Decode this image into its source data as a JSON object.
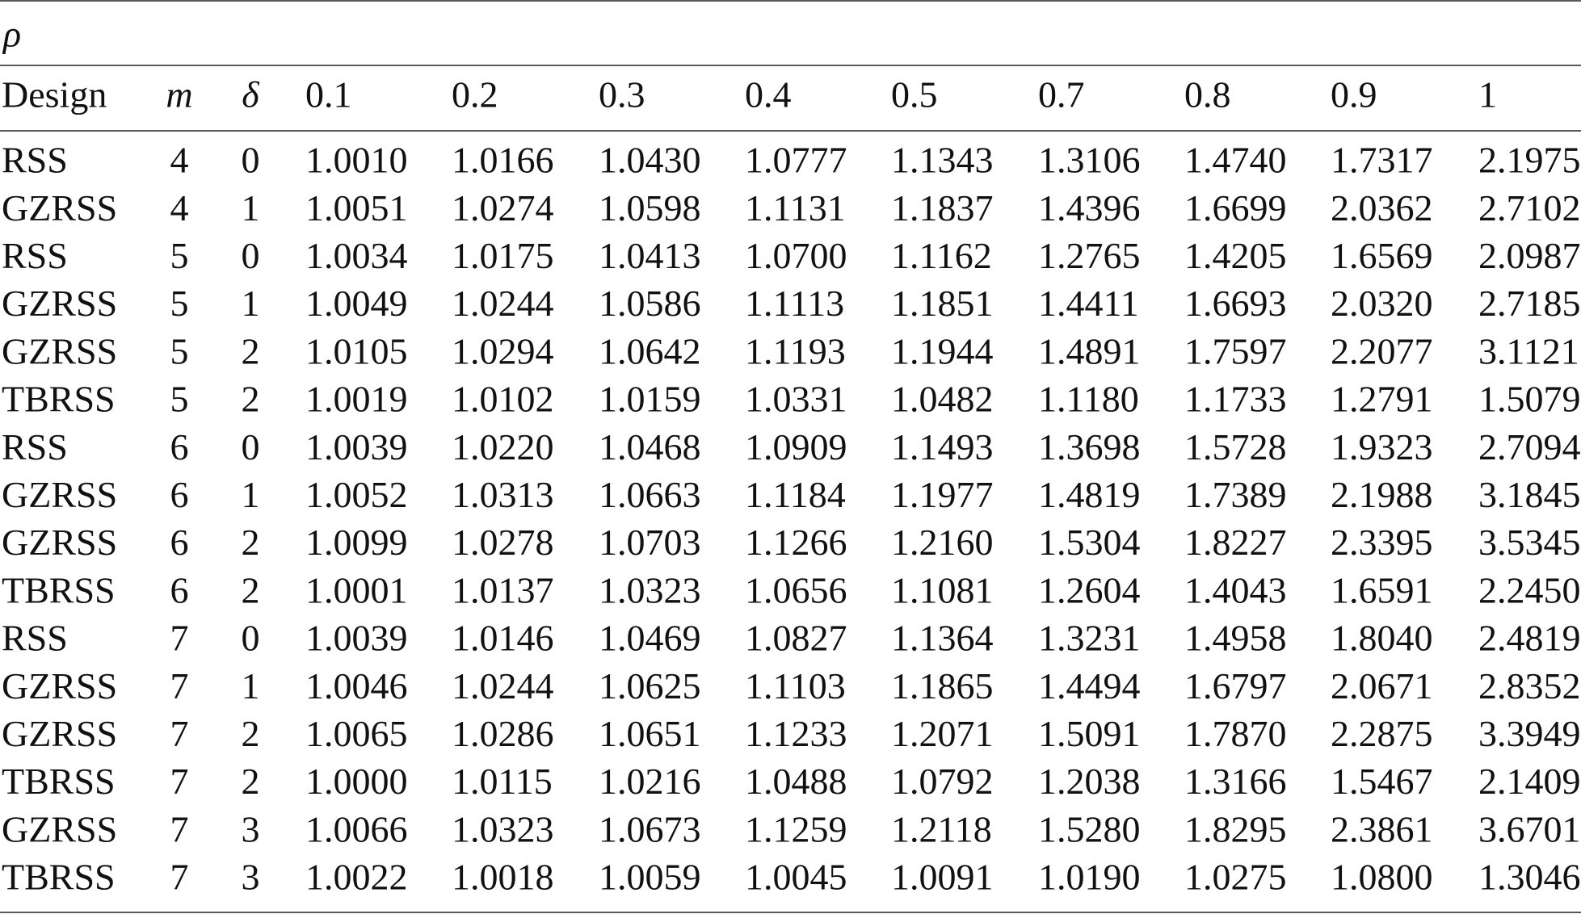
{
  "header": {
    "rho": "ρ"
  },
  "table": {
    "columns": [
      "Design",
      "m",
      "δ",
      "0.1",
      "0.2",
      "0.3",
      "0.4",
      "0.5",
      "0.7",
      "0.8",
      "0.9",
      "1"
    ],
    "rows": [
      [
        "RSS",
        "4",
        "0",
        "1.0010",
        "1.0166",
        "1.0430",
        "1.0777",
        "1.1343",
        "1.3106",
        "1.4740",
        "1.7317",
        "2.1975"
      ],
      [
        "GZRSS",
        "4",
        "1",
        "1.0051",
        "1.0274",
        "1.0598",
        "1.1131",
        "1.1837",
        "1.4396",
        "1.6699",
        "2.0362",
        "2.7102"
      ],
      [
        "RSS",
        "5",
        "0",
        "1.0034",
        "1.0175",
        "1.0413",
        "1.0700",
        "1.1162",
        "1.2765",
        "1.4205",
        "1.6569",
        "2.0987"
      ],
      [
        "GZRSS",
        "5",
        "1",
        "1.0049",
        "1.0244",
        "1.0586",
        "1.1113",
        "1.1851",
        "1.4411",
        "1.6693",
        "2.0320",
        "2.7185"
      ],
      [
        "GZRSS",
        "5",
        "2",
        "1.0105",
        "1.0294",
        "1.0642",
        "1.1193",
        "1.1944",
        "1.4891",
        "1.7597",
        "2.2077",
        "3.1121"
      ],
      [
        "TBRSS",
        "5",
        "2",
        "1.0019",
        "1.0102",
        "1.0159",
        "1.0331",
        "1.0482",
        "1.1180",
        "1.1733",
        "1.2791",
        "1.5079"
      ],
      [
        "RSS",
        "6",
        "0",
        "1.0039",
        "1.0220",
        "1.0468",
        "1.0909",
        "1.1493",
        "1.3698",
        "1.5728",
        "1.9323",
        "2.7094"
      ],
      [
        "GZRSS",
        "6",
        "1",
        "1.0052",
        "1.0313",
        "1.0663",
        "1.1184",
        "1.1977",
        "1.4819",
        "1.7389",
        "2.1988",
        "3.1845"
      ],
      [
        "GZRSS",
        "6",
        "2",
        "1.0099",
        "1.0278",
        "1.0703",
        "1.1266",
        "1.2160",
        "1.5304",
        "1.8227",
        "2.3395",
        "3.5345"
      ],
      [
        "TBRSS",
        "6",
        "2",
        "1.0001",
        "1.0137",
        "1.0323",
        "1.0656",
        "1.1081",
        "1.2604",
        "1.4043",
        "1.6591",
        "2.2450"
      ],
      [
        "RSS",
        "7",
        "0",
        "1.0039",
        "1.0146",
        "1.0469",
        "1.0827",
        "1.1364",
        "1.3231",
        "1.4958",
        "1.8040",
        "2.4819"
      ],
      [
        "GZRSS",
        "7",
        "1",
        "1.0046",
        "1.0244",
        "1.0625",
        "1.1103",
        "1.1865",
        "1.4494",
        "1.6797",
        "2.0671",
        "2.8352"
      ],
      [
        "GZRSS",
        "7",
        "2",
        "1.0065",
        "1.0286",
        "1.0651",
        "1.1233",
        "1.2071",
        "1.5091",
        "1.7870",
        "2.2875",
        "3.3949"
      ],
      [
        "TBRSS",
        "7",
        "2",
        "1.0000",
        "1.0115",
        "1.0216",
        "1.0488",
        "1.0792",
        "1.2038",
        "1.3166",
        "1.5467",
        "2.1409"
      ],
      [
        "GZRSS",
        "7",
        "3",
        "1.0066",
        "1.0323",
        "1.0673",
        "1.1259",
        "1.2118",
        "1.5280",
        "1.8295",
        "2.3861",
        "3.6701"
      ],
      [
        "TBRSS",
        "7",
        "3",
        "1.0022",
        "1.0018",
        "1.0059",
        "1.0045",
        "1.0091",
        "1.0190",
        "1.0275",
        "1.0800",
        "1.3046"
      ]
    ]
  }
}
